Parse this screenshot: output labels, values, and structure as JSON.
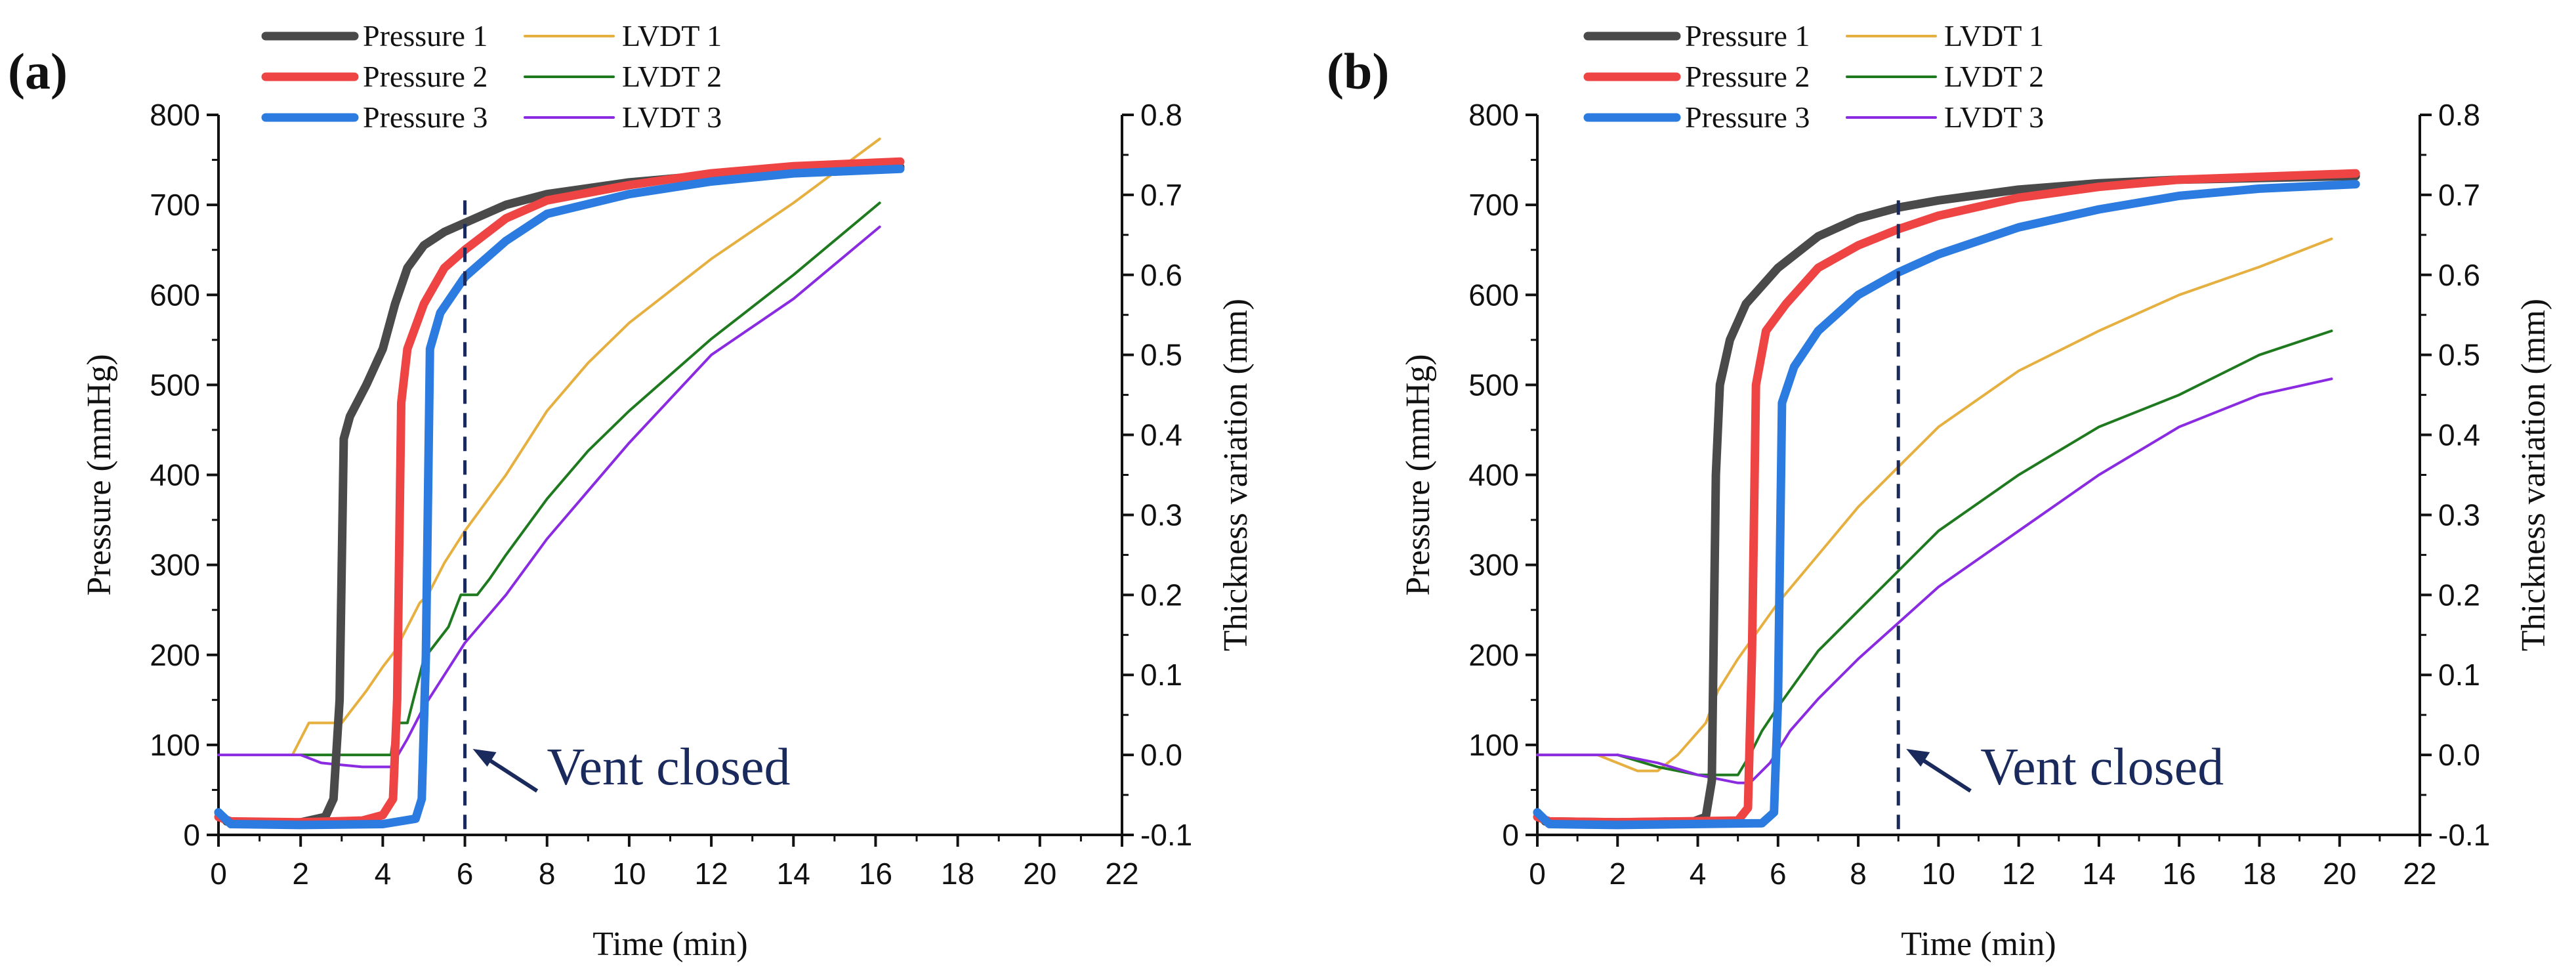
{
  "chart_data": [
    {
      "type": "line",
      "panel_label": "(a)",
      "xlabel": "Time (min)",
      "ylabel": "Pressure (mmHg)",
      "y2label": "Thickness variation (mm)",
      "xlim": [
        0,
        22
      ],
      "ylim": [
        0,
        800
      ],
      "y2lim": [
        -0.1,
        0.8
      ],
      "xticks": [
        "0",
        "2",
        "4",
        "6",
        "8",
        "10",
        "12",
        "14",
        "16",
        "18",
        "20",
        "22"
      ],
      "yticks": [
        "0",
        "100",
        "200",
        "300",
        "400",
        "500",
        "600",
        "700",
        "800"
      ],
      "y2ticks": [
        "-0.1",
        "0.0",
        "0.1",
        "0.2",
        "0.3",
        "0.4",
        "0.5",
        "0.6",
        "0.7",
        "0.8"
      ],
      "grid": false,
      "legend": "top-left",
      "annotation": {
        "text": "Vent closed",
        "x": 6
      },
      "series": [
        {
          "name": "Pressure 1",
          "axis": "left",
          "color": "#4a4a4a",
          "points": [
            [
              0,
              25
            ],
            [
              0.2,
              15
            ],
            [
              1,
              12
            ],
            [
              2,
              14
            ],
            [
              2.6,
              20
            ],
            [
              2.8,
              40
            ],
            [
              2.95,
              150
            ],
            [
              3.05,
              440
            ],
            [
              3.2,
              465
            ],
            [
              3.6,
              500
            ],
            [
              4,
              540
            ],
            [
              4.3,
              590
            ],
            [
              4.6,
              630
            ],
            [
              5,
              655
            ],
            [
              5.5,
              670
            ],
            [
              6,
              680
            ],
            [
              7,
              700
            ],
            [
              8,
              712
            ],
            [
              10,
              725
            ],
            [
              12,
              733
            ],
            [
              14,
              738
            ],
            [
              16.6,
              742
            ]
          ]
        },
        {
          "name": "Pressure 2",
          "axis": "left",
          "color": "#ee4444",
          "points": [
            [
              0,
              20
            ],
            [
              0.3,
              15
            ],
            [
              2,
              14
            ],
            [
              3.5,
              16
            ],
            [
              4,
              22
            ],
            [
              4.25,
              40
            ],
            [
              4.35,
              150
            ],
            [
              4.45,
              480
            ],
            [
              4.6,
              540
            ],
            [
              5,
              590
            ],
            [
              5.5,
              630
            ],
            [
              6,
              650
            ],
            [
              7,
              685
            ],
            [
              8,
              705
            ],
            [
              10,
              722
            ],
            [
              12,
              735
            ],
            [
              14,
              743
            ],
            [
              16.6,
              748
            ]
          ]
        },
        {
          "name": "Pressure 3",
          "axis": "left",
          "color": "#2b7be0",
          "points": [
            [
              0,
              25
            ],
            [
              0.3,
              12
            ],
            [
              2,
              11
            ],
            [
              4,
              12
            ],
            [
              4.8,
              18
            ],
            [
              4.95,
              40
            ],
            [
              5.05,
              200
            ],
            [
              5.15,
              540
            ],
            [
              5.4,
              580
            ],
            [
              6,
              620
            ],
            [
              7,
              660
            ],
            [
              8,
              690
            ],
            [
              10,
              712
            ],
            [
              12,
              726
            ],
            [
              14,
              735
            ],
            [
              16.6,
              740
            ]
          ]
        },
        {
          "name": "LVDT 1",
          "axis": "right",
          "color": "#e6b040",
          "points": [
            [
              1.8,
              0
            ],
            [
              2.2,
              0.04
            ],
            [
              3,
              0.04
            ],
            [
              3.3,
              0.06
            ],
            [
              3.6,
              0.08
            ],
            [
              4,
              0.11
            ],
            [
              4.3,
              0.13
            ],
            [
              4.6,
              0.16
            ],
            [
              4.9,
              0.19
            ],
            [
              5.1,
              0.2
            ],
            [
              5.5,
              0.24
            ],
            [
              6,
              0.28
            ],
            [
              7,
              0.35
            ],
            [
              8,
              0.43
            ],
            [
              9,
              0.49
            ],
            [
              10,
              0.54
            ],
            [
              12,
              0.62
            ],
            [
              14,
              0.69
            ],
            [
              16.1,
              0.77
            ]
          ]
        },
        {
          "name": "LVDT 2",
          "axis": "right",
          "color": "#1f7a1f",
          "points": [
            [
              2,
              0
            ],
            [
              4.2,
              0
            ],
            [
              4.3,
              0.04
            ],
            [
              4.6,
              0.04
            ],
            [
              4.8,
              0.08
            ],
            [
              5,
              0.12
            ],
            [
              5.3,
              0.14
            ],
            [
              5.6,
              0.16
            ],
            [
              5.9,
              0.2
            ],
            [
              6.3,
              0.2
            ],
            [
              6.6,
              0.22
            ],
            [
              7,
              0.25
            ],
            [
              8,
              0.32
            ],
            [
              9,
              0.38
            ],
            [
              10,
              0.43
            ],
            [
              12,
              0.52
            ],
            [
              14,
              0.6
            ],
            [
              16.1,
              0.69
            ]
          ]
        },
        {
          "name": "LVDT 3",
          "axis": "right",
          "color": "#8a2be2",
          "points": [
            [
              0,
              0
            ],
            [
              2,
              0
            ],
            [
              2.5,
              -0.01
            ],
            [
              3.5,
              -0.015
            ],
            [
              4.2,
              -0.015
            ],
            [
              4.6,
              0.02
            ],
            [
              5,
              0.06
            ],
            [
              5.5,
              0.1
            ],
            [
              6,
              0.14
            ],
            [
              7,
              0.2
            ],
            [
              8,
              0.27
            ],
            [
              10,
              0.39
            ],
            [
              12,
              0.5
            ],
            [
              14,
              0.57
            ],
            [
              16.1,
              0.66
            ]
          ]
        }
      ]
    },
    {
      "type": "line",
      "panel_label": "(b)",
      "xlabel": "Time (min)",
      "ylabel": "Pressure (mmHg)",
      "y2label": "Thickness variation (mm)",
      "xlim": [
        0,
        22
      ],
      "ylim": [
        0,
        800
      ],
      "y2lim": [
        -0.1,
        0.8
      ],
      "xticks": [
        "0",
        "2",
        "4",
        "6",
        "8",
        "10",
        "12",
        "14",
        "16",
        "18",
        "20",
        "22"
      ],
      "yticks": [
        "0",
        "100",
        "200",
        "300",
        "400",
        "500",
        "600",
        "700",
        "800"
      ],
      "y2ticks": [
        "-0.1",
        "0.0",
        "0.1",
        "0.2",
        "0.3",
        "0.4",
        "0.5",
        "0.6",
        "0.7",
        "0.8"
      ],
      "grid": false,
      "legend": "top-left",
      "annotation": {
        "text": "Vent closed",
        "x": 9
      },
      "series": [
        {
          "name": "Pressure 1",
          "axis": "left",
          "color": "#4a4a4a",
          "points": [
            [
              0,
              25
            ],
            [
              0.2,
              15
            ],
            [
              2,
              14
            ],
            [
              3.9,
              15
            ],
            [
              4.2,
              20
            ],
            [
              4.35,
              60
            ],
            [
              4.45,
              400
            ],
            [
              4.55,
              500
            ],
            [
              4.8,
              550
            ],
            [
              5.2,
              590
            ],
            [
              6,
              630
            ],
            [
              7,
              665
            ],
            [
              8,
              685
            ],
            [
              9,
              697
            ],
            [
              10,
              705
            ],
            [
              12,
              717
            ],
            [
              14,
              724
            ],
            [
              16,
              728
            ],
            [
              20.4,
              732
            ]
          ]
        },
        {
          "name": "Pressure 2",
          "axis": "left",
          "color": "#ee4444",
          "points": [
            [
              0,
              20
            ],
            [
              0.3,
              15
            ],
            [
              2,
              14
            ],
            [
              5,
              16
            ],
            [
              5.25,
              30
            ],
            [
              5.35,
              200
            ],
            [
              5.45,
              500
            ],
            [
              5.7,
              560
            ],
            [
              6.2,
              590
            ],
            [
              7,
              630
            ],
            [
              8,
              655
            ],
            [
              9,
              673
            ],
            [
              10,
              688
            ],
            [
              12,
              708
            ],
            [
              14,
              720
            ],
            [
              16,
              728
            ],
            [
              20.4,
              735
            ]
          ]
        },
        {
          "name": "Pressure 3",
          "axis": "left",
          "color": "#2b7be0",
          "points": [
            [
              0,
              25
            ],
            [
              0.3,
              12
            ],
            [
              2,
              11
            ],
            [
              5.6,
              13
            ],
            [
              5.9,
              25
            ],
            [
              6,
              150
            ],
            [
              6.1,
              480
            ],
            [
              6.4,
              520
            ],
            [
              7,
              560
            ],
            [
              8,
              600
            ],
            [
              9,
              625
            ],
            [
              10,
              645
            ],
            [
              12,
              675
            ],
            [
              14,
              695
            ],
            [
              16,
              710
            ],
            [
              18,
              718
            ],
            [
              20.4,
              723
            ]
          ]
        },
        {
          "name": "LVDT 1",
          "axis": "right",
          "color": "#e6b040",
          "points": [
            [
              0,
              0
            ],
            [
              1.5,
              0
            ],
            [
              2.5,
              -0.02
            ],
            [
              3,
              -0.02
            ],
            [
              3.5,
              0
            ],
            [
              4.2,
              0.04
            ],
            [
              4.5,
              0.08
            ],
            [
              5,
              0.12
            ],
            [
              6,
              0.19
            ],
            [
              7,
              0.25
            ],
            [
              8,
              0.31
            ],
            [
              9,
              0.36
            ],
            [
              10,
              0.41
            ],
            [
              12,
              0.48
            ],
            [
              14,
              0.53
            ],
            [
              16,
              0.575
            ],
            [
              18,
              0.61
            ],
            [
              19.8,
              0.645
            ]
          ]
        },
        {
          "name": "LVDT 2",
          "axis": "right",
          "color": "#1f7a1f",
          "points": [
            [
              2,
              0
            ],
            [
              3,
              -0.015
            ],
            [
              4,
              -0.025
            ],
            [
              5,
              -0.025
            ],
            [
              5.3,
              0
            ],
            [
              5.6,
              0.03
            ],
            [
              6,
              0.06
            ],
            [
              7,
              0.13
            ],
            [
              8,
              0.18
            ],
            [
              9,
              0.23
            ],
            [
              10,
              0.28
            ],
            [
              12,
              0.35
            ],
            [
              14,
              0.41
            ],
            [
              16,
              0.45
            ],
            [
              18,
              0.5
            ],
            [
              19.8,
              0.53
            ]
          ]
        },
        {
          "name": "LVDT 3",
          "axis": "right",
          "color": "#8a2be2",
          "points": [
            [
              0,
              0
            ],
            [
              2,
              0
            ],
            [
              3,
              -0.01
            ],
            [
              4,
              -0.025
            ],
            [
              5,
              -0.035
            ],
            [
              5.3,
              -0.035
            ],
            [
              5.8,
              -0.01
            ],
            [
              6.3,
              0.03
            ],
            [
              7,
              0.07
            ],
            [
              8,
              0.12
            ],
            [
              9,
              0.165
            ],
            [
              10,
              0.21
            ],
            [
              12,
              0.28
            ],
            [
              14,
              0.35
            ],
            [
              16,
              0.41
            ],
            [
              18,
              0.45
            ],
            [
              19.8,
              0.47
            ]
          ]
        }
      ]
    }
  ]
}
